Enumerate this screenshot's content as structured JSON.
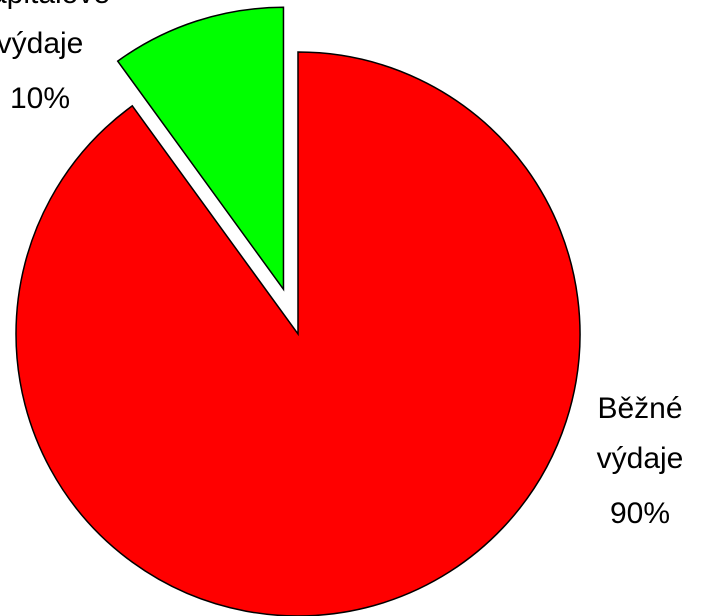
{
  "chart_data": {
    "type": "pie",
    "categories": [
      "Běžné výdaje",
      "Kapitálové výdaje"
    ],
    "values": [
      90,
      10
    ],
    "value_labels": [
      "90%",
      "10%"
    ],
    "colors": [
      "#ff0000",
      "#00ff00"
    ],
    "exploded": [
      false,
      true
    ]
  }
}
